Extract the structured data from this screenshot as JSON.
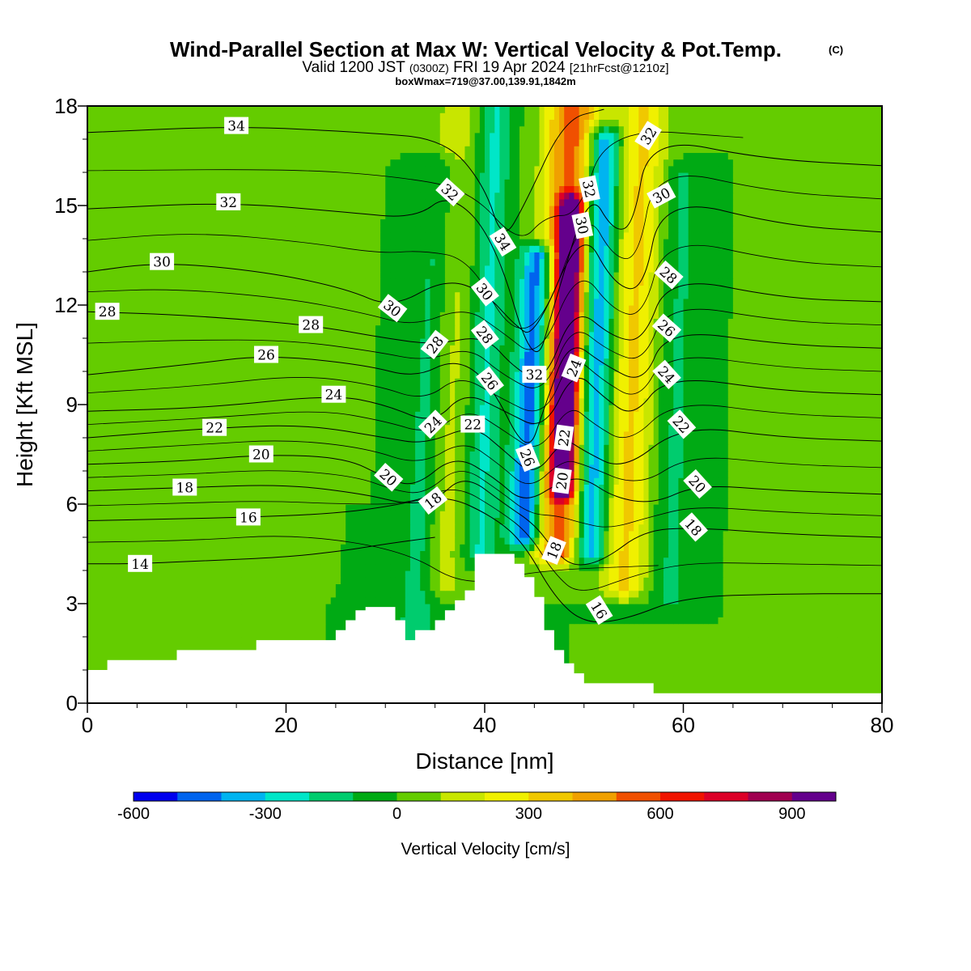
{
  "title": {
    "main": "Wind-Parallel Section at Max W: Vertical Velocity & Pot.Temp.",
    "copyright": "(C)",
    "valid_prefix": "Valid 1200 JST",
    "valid_utc": "(0300Z)",
    "valid_date": "FRI 19 Apr 2024",
    "forecast": "[21hrFcst@1210z]",
    "boxmax": "boxWmax=719@37.00,139.91,1842m"
  },
  "chart_data": {
    "type": "heatmap",
    "xlabel": "Distance [nm]",
    "ylabel": "Height [Kft MSL]",
    "xlim": [
      0,
      80
    ],
    "ylim": [
      0,
      18
    ],
    "x_ticks": [
      "0",
      "20",
      "40",
      "60",
      "80"
    ],
    "y_ticks": [
      "0",
      "3",
      "6",
      "9",
      "12",
      "15",
      "18"
    ],
    "colorbar": {
      "label": "Vertical Velocity [cm/s]",
      "levels": [
        -600,
        -500,
        -400,
        -300,
        -200,
        -100,
        0,
        100,
        200,
        300,
        400,
        500,
        600,
        700,
        800,
        900,
        1000
      ],
      "tick_labels": [
        "-600",
        "-300",
        "0",
        "300",
        "600",
        "900"
      ],
      "tick_values": [
        -600,
        -300,
        0,
        300,
        600,
        900
      ],
      "colors": [
        "#0000ee",
        "#0064ee",
        "#00b4f0",
        "#00e6c8",
        "#00cc6e",
        "#00aa14",
        "#64cc00",
        "#c8e600",
        "#f0f000",
        "#f0c800",
        "#f0a000",
        "#f05000",
        "#f01400",
        "#dc0028",
        "#a00050",
        "#64008c"
      ]
    },
    "background_w": 0,
    "vertical_velocity_features": [
      {
        "x_center": 33.0,
        "y_bottom": 1.8,
        "y_top": 16.2,
        "tilt": 0.18,
        "width": 1.8,
        "w": -180
      },
      {
        "x_center": 14.0,
        "y_bottom": 4.0,
        "y_top": 18.0,
        "tilt": 0.02,
        "width": 2.0,
        "w": 50
      },
      {
        "x_center": 24.0,
        "y_bottom": 6.5,
        "y_top": 17.0,
        "tilt": 0.0,
        "width": 1.8,
        "w": 40
      },
      {
        "x_center": 35.5,
        "y_bottom": 3.5,
        "y_top": 18.0,
        "tilt": 0.12,
        "width": 2.3,
        "w": 150
      },
      {
        "x_center": 39.5,
        "y_bottom": 4.5,
        "y_top": 18.0,
        "tilt": 0.12,
        "width": 1.6,
        "w": -220
      },
      {
        "x_center": 44.0,
        "y_bottom": 5.0,
        "y_top": 13.5,
        "tilt": 0.16,
        "width": 1.6,
        "w": -540
      },
      {
        "x_center": 47.5,
        "y_bottom": 4.5,
        "y_top": 18.0,
        "tilt": 0.1,
        "width": 2.6,
        "w": 560
      },
      {
        "x_center": 47.8,
        "y_bottom": 6.5,
        "y_top": 15.0,
        "tilt": 0.1,
        "width": 1.2,
        "w": 760
      },
      {
        "x_center": 50.5,
        "y_bottom": 4.5,
        "y_top": 17.0,
        "tilt": 0.12,
        "width": 1.7,
        "w": -480
      },
      {
        "x_center": 54.0,
        "y_bottom": 3.5,
        "y_top": 18.0,
        "tilt": 0.14,
        "width": 2.4,
        "w": 320
      },
      {
        "x_center": 58.5,
        "y_bottom": 3.0,
        "y_top": 16.0,
        "tilt": 0.1,
        "width": 2.2,
        "w": -120
      },
      {
        "x_center": 70.0,
        "y_bottom": 1.5,
        "y_top": 18.0,
        "tilt": 0.05,
        "width": 2.5,
        "w": 60
      },
      {
        "x_center": 77.0,
        "y_bottom": 0.4,
        "y_top": 18.0,
        "tilt": 0.0,
        "width": 2.0,
        "w": 50
      },
      {
        "x_center": 4.0,
        "y_bottom": 1.0,
        "y_top": 6.0,
        "tilt": 0.0,
        "width": 4.0,
        "w": 40
      }
    ],
    "terrain": {
      "x": [
        0,
        2,
        2,
        9,
        9,
        17,
        17,
        25,
        25,
        26,
        26,
        27,
        27,
        28,
        28,
        31,
        31,
        32,
        32,
        33,
        33,
        35,
        35,
        36,
        36,
        37,
        37,
        38,
        38,
        39,
        39,
        40,
        40,
        43,
        43,
        44,
        44,
        45,
        45,
        46,
        46,
        47,
        47,
        48,
        48,
        49,
        49,
        50,
        50,
        57,
        57,
        80
      ],
      "height": [
        1.0,
        1.0,
        1.3,
        1.3,
        1.6,
        1.6,
        1.9,
        1.9,
        2.2,
        2.2,
        2.5,
        2.5,
        2.8,
        2.8,
        2.9,
        2.9,
        2.5,
        2.5,
        1.9,
        1.9,
        2.2,
        2.2,
        2.5,
        2.5,
        2.8,
        2.8,
        3.1,
        3.1,
        3.4,
        3.4,
        4.5,
        4.5,
        4.5,
        4.5,
        4.2,
        4.2,
        3.8,
        3.8,
        3.2,
        3.2,
        2.2,
        2.2,
        1.6,
        1.6,
        1.2,
        1.2,
        0.9,
        0.9,
        0.6,
        0.6,
        0.3,
        0.3
      ]
    },
    "theta_contour_labels": [
      {
        "value": "34",
        "x": 15.0,
        "y": 17.4,
        "angle": 0
      },
      {
        "value": "32",
        "x": 14.2,
        "y": 15.1,
        "angle": 0
      },
      {
        "value": "30",
        "x": 7.5,
        "y": 13.3,
        "angle": 0
      },
      {
        "value": "28",
        "x": 2.0,
        "y": 11.8,
        "angle": 0
      },
      {
        "value": "28",
        "x": 22.5,
        "y": 11.4,
        "angle": 0
      },
      {
        "value": "26",
        "x": 18.0,
        "y": 10.5,
        "angle": 0
      },
      {
        "value": "24",
        "x": 24.8,
        "y": 9.3,
        "angle": 0
      },
      {
        "value": "22",
        "x": 12.8,
        "y": 8.3,
        "angle": 0
      },
      {
        "value": "20",
        "x": 17.5,
        "y": 7.5,
        "angle": 0
      },
      {
        "value": "18",
        "x": 9.8,
        "y": 6.5,
        "angle": 0
      },
      {
        "value": "16",
        "x": 16.2,
        "y": 5.6,
        "angle": 0
      },
      {
        "value": "14",
        "x": 5.3,
        "y": 4.2,
        "angle": 0
      },
      {
        "value": "32",
        "x": 36.5,
        "y": 15.4,
        "angle": 42
      },
      {
        "value": "34",
        "x": 41.8,
        "y": 13.9,
        "angle": 58
      },
      {
        "value": "30",
        "x": 40.0,
        "y": 12.4,
        "angle": 52
      },
      {
        "value": "30",
        "x": 30.7,
        "y": 11.9,
        "angle": 38
      },
      {
        "value": "28",
        "x": 35.0,
        "y": 10.8,
        "angle": -52
      },
      {
        "value": "28",
        "x": 40.0,
        "y": 11.1,
        "angle": 52
      },
      {
        "value": "26",
        "x": 40.5,
        "y": 9.7,
        "angle": 52
      },
      {
        "value": "32",
        "x": 45.0,
        "y": 9.9,
        "angle": 0
      },
      {
        "value": "24",
        "x": 49.0,
        "y": 10.1,
        "angle": -68
      },
      {
        "value": "24",
        "x": 34.8,
        "y": 8.4,
        "angle": -45
      },
      {
        "value": "22",
        "x": 38.8,
        "y": 8.4,
        "angle": 0
      },
      {
        "value": "26",
        "x": 44.3,
        "y": 7.4,
        "angle": 68
      },
      {
        "value": "22",
        "x": 48.0,
        "y": 8.0,
        "angle": -82
      },
      {
        "value": "20",
        "x": 30.3,
        "y": 6.8,
        "angle": 42
      },
      {
        "value": "18",
        "x": 34.8,
        "y": 6.1,
        "angle": -38
      },
      {
        "value": "20",
        "x": 47.8,
        "y": 6.7,
        "angle": -82
      },
      {
        "value": "18",
        "x": 47.0,
        "y": 4.6,
        "angle": -68
      },
      {
        "value": "16",
        "x": 51.5,
        "y": 2.8,
        "angle": 58
      },
      {
        "value": "32",
        "x": 56.5,
        "y": 17.1,
        "angle": -58
      },
      {
        "value": "32",
        "x": 50.5,
        "y": 15.5,
        "angle": 78
      },
      {
        "value": "30",
        "x": 49.8,
        "y": 14.4,
        "angle": 78
      },
      {
        "value": "30",
        "x": 57.8,
        "y": 15.3,
        "angle": -28
      },
      {
        "value": "28",
        "x": 58.5,
        "y": 12.9,
        "angle": 42
      },
      {
        "value": "26",
        "x": 58.3,
        "y": 11.3,
        "angle": 42
      },
      {
        "value": "24",
        "x": 58.3,
        "y": 9.9,
        "angle": 48
      },
      {
        "value": "22",
        "x": 59.8,
        "y": 8.4,
        "angle": 48
      },
      {
        "value": "20",
        "x": 61.4,
        "y": 6.6,
        "angle": 48
      },
      {
        "value": "18",
        "x": 61.0,
        "y": 5.3,
        "angle": 48
      }
    ],
    "theta_labeled_curves": [
      {
        "value": "14",
        "points": [
          [
            0,
            4.2
          ],
          [
            5,
            4.2
          ],
          [
            12,
            4.3
          ],
          [
            20,
            4.4
          ],
          [
            26,
            4.6
          ],
          [
            30,
            4.8
          ],
          [
            35,
            5.0
          ]
        ]
      },
      {
        "value": "16",
        "points": [
          [
            0,
            5.5
          ],
          [
            8,
            5.55
          ],
          [
            16,
            5.6
          ],
          [
            24,
            5.7
          ],
          [
            30,
            5.9
          ],
          [
            36,
            6.3
          ],
          [
            41,
            5.6
          ],
          [
            44,
            4.8
          ],
          [
            47,
            3.2
          ],
          [
            50,
            2.4
          ],
          [
            54,
            2.5
          ],
          [
            60,
            3.2
          ],
          [
            70,
            3.3
          ],
          [
            80,
            3.3
          ]
        ]
      },
      {
        "value": "18",
        "points": [
          [
            0,
            6.4
          ],
          [
            10,
            6.5
          ],
          [
            20,
            6.6
          ],
          [
            28,
            6.3
          ],
          [
            32,
            6.0
          ],
          [
            35,
            6.1
          ],
          [
            38,
            6.9
          ],
          [
            42,
            6.0
          ],
          [
            45,
            5.4
          ],
          [
            47,
            4.6
          ],
          [
            49,
            4.1
          ],
          [
            52,
            4.3
          ],
          [
            56,
            5.2
          ],
          [
            61,
            5.3
          ],
          [
            70,
            5.1
          ],
          [
            80,
            5.0
          ]
        ]
      },
      {
        "value": "20",
        "points": [
          [
            0,
            7.2
          ],
          [
            10,
            7.3
          ],
          [
            18,
            7.5
          ],
          [
            26,
            7.4
          ],
          [
            30,
            6.8
          ],
          [
            33,
            6.5
          ],
          [
            37,
            7.5
          ],
          [
            41,
            6.8
          ],
          [
            44,
            6.0
          ],
          [
            47.8,
            6.7
          ],
          [
            50,
            6.8
          ],
          [
            53,
            6.2
          ],
          [
            57,
            6.0
          ],
          [
            61.4,
            6.6
          ],
          [
            70,
            6.4
          ],
          [
            80,
            6.3
          ]
        ]
      },
      {
        "value": "22",
        "points": [
          [
            0,
            8.0
          ],
          [
            12.8,
            8.3
          ],
          [
            22,
            8.4
          ],
          [
            30,
            8.0
          ],
          [
            34,
            7.8
          ],
          [
            38.8,
            8.4
          ],
          [
            42,
            7.6
          ],
          [
            45,
            6.8
          ],
          [
            48,
            8.0
          ],
          [
            50,
            7.6
          ],
          [
            54,
            7.0
          ],
          [
            59.8,
            8.4
          ],
          [
            70,
            8.0
          ],
          [
            80,
            7.9
          ]
        ]
      },
      {
        "value": "24",
        "points": [
          [
            0,
            8.8
          ],
          [
            12,
            8.9
          ],
          [
            24.8,
            9.3
          ],
          [
            30,
            9.0
          ],
          [
            34.8,
            8.4
          ],
          [
            38,
            9.4
          ],
          [
            42,
            8.8
          ],
          [
            46,
            8.2
          ],
          [
            49,
            10.1
          ],
          [
            52,
            9.2
          ],
          [
            55,
            8.6
          ],
          [
            58.3,
            9.9
          ],
          [
            70,
            9.4
          ],
          [
            80,
            9.3
          ]
        ]
      },
      {
        "value": "26",
        "points": [
          [
            0,
            9.9
          ],
          [
            10,
            10.2
          ],
          [
            18,
            10.5
          ],
          [
            28,
            10.2
          ],
          [
            33,
            9.8
          ],
          [
            37,
            10.4
          ],
          [
            40.5,
            9.7
          ],
          [
            44.3,
            7.4
          ],
          [
            46,
            8.9
          ],
          [
            48.5,
            11.0
          ],
          [
            52,
            10.2
          ],
          [
            56,
            9.6
          ],
          [
            58.3,
            11.3
          ],
          [
            70,
            10.8
          ],
          [
            80,
            10.7
          ]
        ]
      },
      {
        "value": "28",
        "points": [
          [
            0,
            11.8
          ],
          [
            10,
            11.7
          ],
          [
            22.5,
            11.4
          ],
          [
            30,
            11.0
          ],
          [
            35,
            10.8
          ],
          [
            40,
            11.1
          ],
          [
            43,
            10.1
          ],
          [
            46,
            9.6
          ],
          [
            49,
            12.0
          ],
          [
            53,
            11.0
          ],
          [
            56,
            10.9
          ],
          [
            58.5,
            12.9
          ],
          [
            70,
            12.2
          ],
          [
            80,
            12.1
          ]
        ]
      },
      {
        "value": "30",
        "points": [
          [
            0,
            13.0
          ],
          [
            7.5,
            13.3
          ],
          [
            18,
            13.0
          ],
          [
            26,
            12.5
          ],
          [
            30.7,
            11.9
          ],
          [
            36,
            12.8
          ],
          [
            40,
            12.4
          ],
          [
            43,
            11.4
          ],
          [
            45,
            11.0
          ],
          [
            49.8,
            14.4
          ],
          [
            53,
            12.6
          ],
          [
            56,
            12.4
          ],
          [
            57.8,
            15.3
          ],
          [
            70,
            14.4
          ],
          [
            80,
            14.2
          ]
        ]
      },
      {
        "value": "32",
        "points": [
          [
            0,
            14.9
          ],
          [
            14.2,
            15.1
          ],
          [
            26,
            14.8
          ],
          [
            33,
            14.6
          ],
          [
            36.5,
            15.4
          ],
          [
            41,
            14.0
          ],
          [
            45,
            9.9
          ],
          [
            47,
            12.0
          ],
          [
            50.5,
            15.5
          ],
          [
            53,
            14.2
          ],
          [
            55,
            14.4
          ],
          [
            56.5,
            17.1
          ],
          [
            68,
            16.4
          ],
          [
            80,
            16.2
          ]
        ]
      },
      {
        "value": "34",
        "points": [
          [
            0,
            17.2
          ],
          [
            15,
            17.4
          ],
          [
            28,
            17.2
          ],
          [
            36,
            17.0
          ],
          [
            40,
            15.6
          ],
          [
            41.8,
            13.9
          ],
          [
            44,
            15.0
          ],
          [
            48,
            17.6
          ],
          [
            52,
            17.9
          ]
        ]
      }
    ]
  }
}
